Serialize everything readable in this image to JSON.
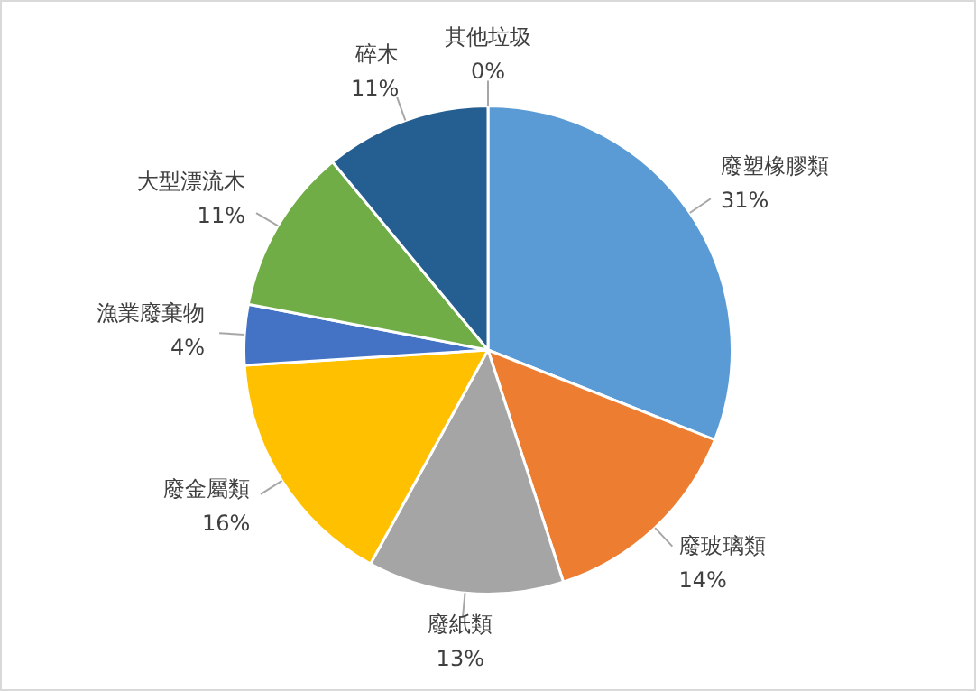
{
  "chart_data": {
    "type": "pie",
    "categories": [
      "廢塑橡膠類",
      "廢玻璃類",
      "廢紙類",
      "廢金屬類",
      "漁業廢棄物",
      "大型漂流木",
      "碎木",
      "其他垃圾"
    ],
    "values": [
      31,
      14,
      13,
      16,
      4,
      11,
      11,
      0
    ],
    "colors": [
      "#5b9bd5",
      "#ed7d31",
      "#a5a5a5",
      "#ffc000",
      "#4472c4",
      "#70ad47",
      "#255e91",
      "#9e480e"
    ],
    "value_labels": [
      "31%",
      "14%",
      "13%",
      "16%",
      "4%",
      "11%",
      "11%",
      "0%"
    ]
  }
}
